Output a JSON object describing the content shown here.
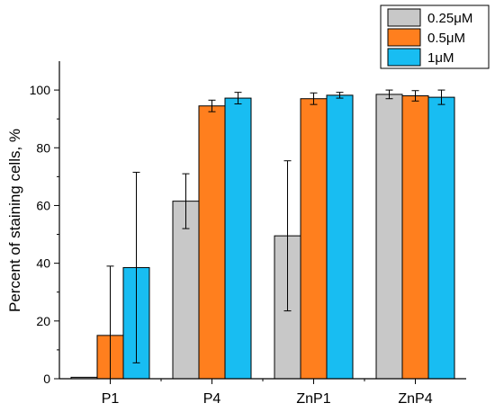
{
  "chart_data": {
    "type": "bar",
    "categories": [
      "P1",
      "P4",
      "ZnP1",
      "ZnP4"
    ],
    "series": [
      {
        "name": "0.25μM",
        "color": "#c8c8c8",
        "values": [
          0.5,
          61.5,
          49.5,
          98.5
        ],
        "errors": [
          0,
          9.5,
          26,
          1.5
        ]
      },
      {
        "name": "0.5μM",
        "color": "#ff7f1e",
        "values": [
          15,
          94.5,
          97,
          98
        ],
        "errors": [
          24,
          2,
          2,
          1.8
        ]
      },
      {
        "name": "1μM",
        "color": "#18bdf2",
        "values": [
          38.5,
          97.2,
          98.2,
          97.5
        ],
        "errors": [
          33,
          2,
          1,
          2.5
        ]
      }
    ],
    "ylabel": "Percent of staining cells, %",
    "xlabel": "",
    "ylim": [
      0,
      110
    ],
    "yticks": [
      "0",
      "20",
      "40",
      "60",
      "80",
      "100"
    ],
    "legend": "top-right",
    "grid": false
  }
}
